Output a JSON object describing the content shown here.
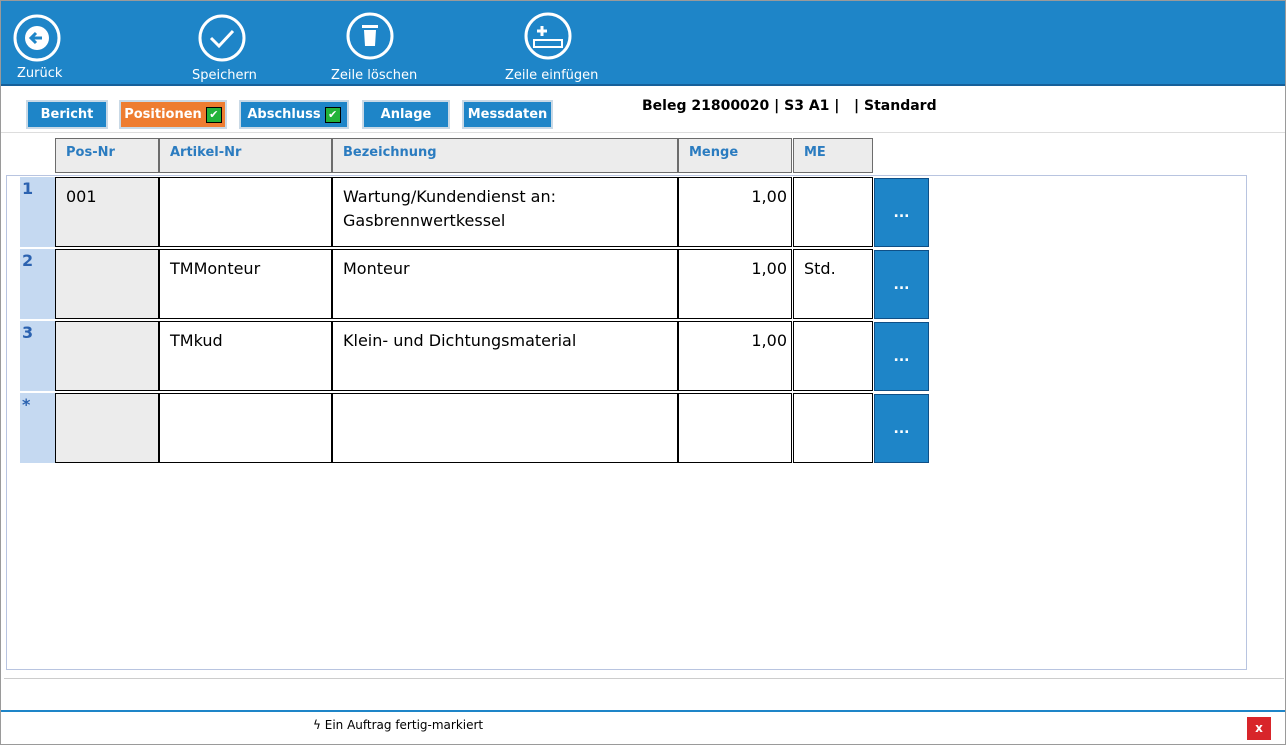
{
  "toolbar": {
    "buttons": [
      "Zurück",
      "Speichern",
      "Zeile löschen",
      "Zeile einfügen"
    ]
  },
  "tabs": [
    {
      "label": "Bericht",
      "active": false,
      "checked": false
    },
    {
      "label": "Positionen",
      "active": true,
      "checked": true
    },
    {
      "label": "Abschluss",
      "active": false,
      "checked": true
    },
    {
      "label": "Anlage",
      "active": false,
      "checked": false
    },
    {
      "label": "Messdaten",
      "active": false,
      "checked": false
    }
  ],
  "document_info": "Beleg 21800020 | S3 A1 |   | Standard",
  "table": {
    "columns": [
      "Pos-Nr",
      "Artikel-Nr",
      "Bezeichnung",
      "Menge",
      "ME"
    ],
    "rows": [
      {
        "marker": "1",
        "cells": [
          "001",
          null,
          "Wartung/Kundendienst an: Gasbrennwertkessel",
          "1,00",
          null
        ],
        "action": "..."
      },
      {
        "marker": "2",
        "cells": [
          null,
          "TMMonteur",
          "Monteur",
          "1,00",
          "Std."
        ],
        "action": "..."
      },
      {
        "marker": "3",
        "cells": [
          null,
          "TMkud",
          "Klein- und Dichtungsmaterial",
          "1,00",
          null
        ],
        "action": "..."
      },
      {
        "marker": "*",
        "cells": [
          null,
          null,
          null,
          null,
          null
        ],
        "action": "..."
      }
    ]
  },
  "status": {
    "message": "ϟ Ein Auftrag fertig-markiert",
    "close": "x"
  }
}
